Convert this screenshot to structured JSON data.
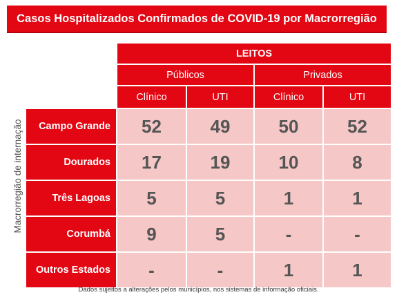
{
  "title": "Casos Hospitalizados Confirmados de COVID-19 por Macrorregião",
  "side_label": "Macrorregião de internação",
  "header": {
    "leitos": "LEITOS",
    "publicos": "Públicos",
    "privados": "Privados",
    "columns": [
      "Clínico",
      "UTI",
      "Clínico",
      "UTI"
    ]
  },
  "rows": [
    {
      "label": "Campo Grande",
      "values": [
        "52",
        "49",
        "50",
        "52"
      ]
    },
    {
      "label": "Dourados",
      "values": [
        "17",
        "19",
        "10",
        "8"
      ]
    },
    {
      "label": "Três Lagoas",
      "values": [
        "5",
        "5",
        "1",
        "1"
      ]
    },
    {
      "label": "Corumbá",
      "values": [
        "9",
        "5",
        "-",
        "-"
      ]
    },
    {
      "label": "Outros Estados",
      "values": [
        "-",
        "-",
        "1",
        "1"
      ]
    }
  ],
  "footnote": "Dados sujeitos a alterações pelos municípios, nos sistemas de informação oficiais.",
  "colors": {
    "accent_red": "#e30613",
    "cell_pink": "#f5c7c7",
    "value_gray": "#555555"
  }
}
